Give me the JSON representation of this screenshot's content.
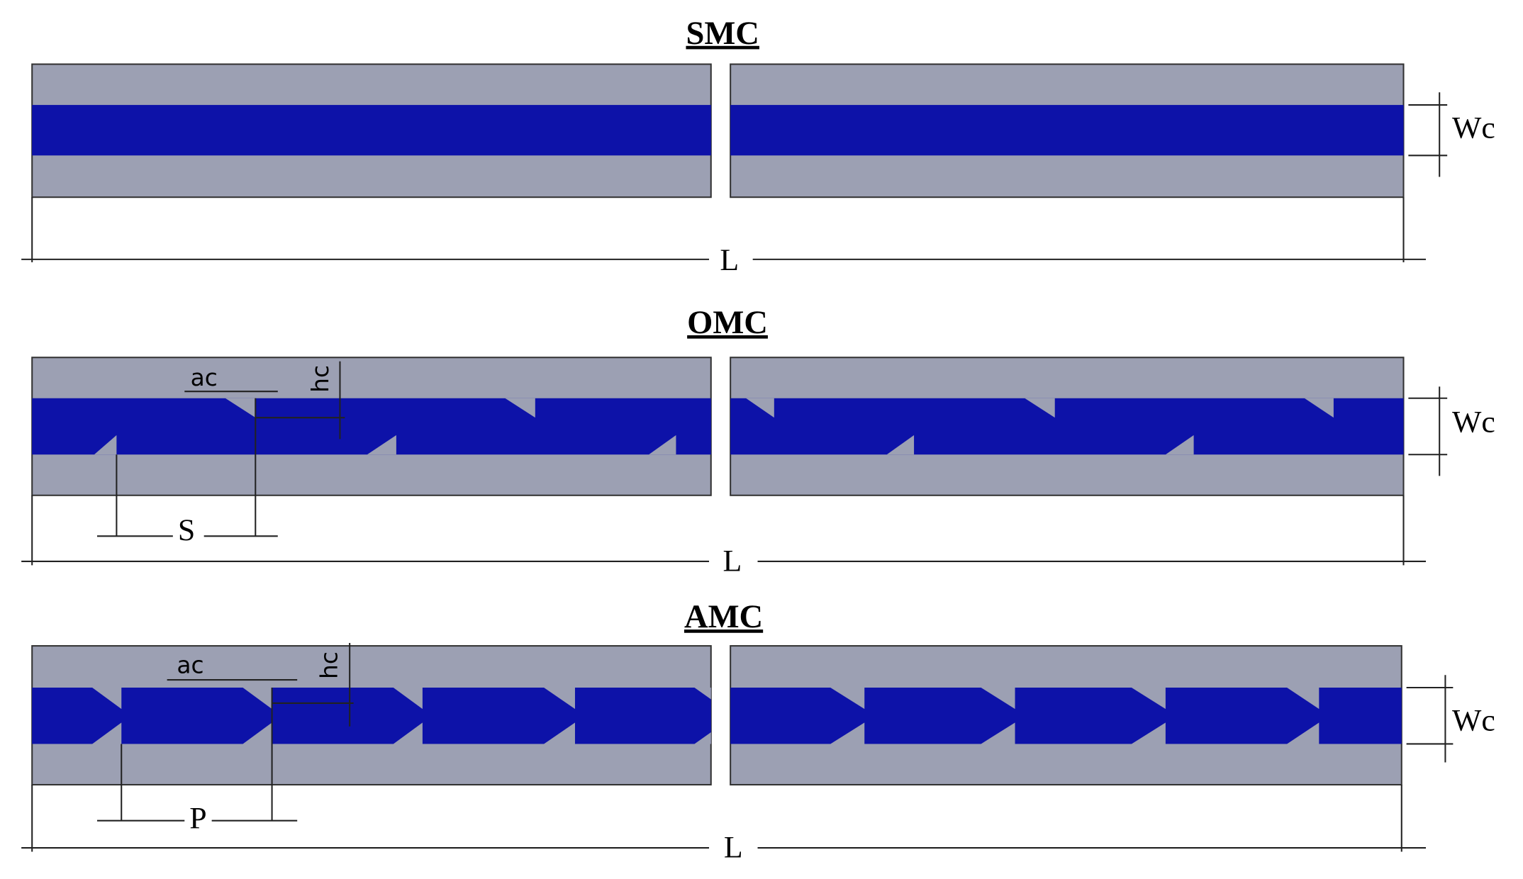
{
  "panels": [
    {
      "title": "SMC",
      "labels": {
        "width": "Wc",
        "length": "L"
      }
    },
    {
      "title": "OMC",
      "labels": {
        "angle": "ac",
        "height": "hc",
        "spacing": "S",
        "width": "Wc",
        "length": "L"
      }
    },
    {
      "title": "AMC",
      "labels": {
        "angle": "ac",
        "height": "hc",
        "pitch": "P",
        "width": "Wc",
        "length": "L"
      }
    }
  ]
}
